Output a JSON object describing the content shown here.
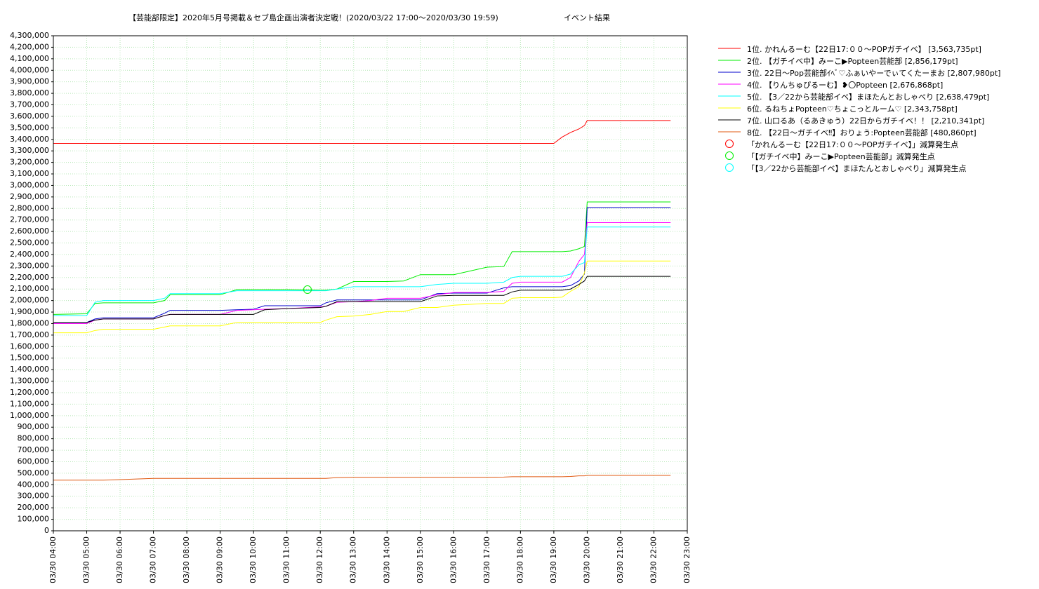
{
  "chart_data": {
    "type": "line",
    "title": "【芸能部限定】2020年5月号掲載＆セブ島企画出演者決定戦！(2020/03/22 17:00～2020/03/30 19:59)",
    "subtitle": "イベント結果",
    "x": [
      "03/30 04:00",
      "03/30 05:00",
      "03/30 05:15",
      "03/30 05:30",
      "03/30 06:00",
      "03/30 07:00",
      "03/30 07:20",
      "03/30 07:30",
      "03/30 08:00",
      "03/30 09:00",
      "03/30 09:30",
      "03/30 10:00",
      "03/30 10:20",
      "03/30 11:00",
      "03/30 12:00",
      "03/30 12:10",
      "03/30 12:30",
      "03/30 13:00",
      "03/30 13:30",
      "03/30 14:00",
      "03/30 14:30",
      "03/30 15:00",
      "03/30 15:30",
      "03/30 16:00",
      "03/30 17:00",
      "03/30 17:30",
      "03/30 17:45",
      "03/30 18:00",
      "03/30 19:00",
      "03/30 19:15",
      "03/30 19:30",
      "03/30 19:45",
      "03/30 19:55",
      "03/30 20:00",
      "03/30 21:00",
      "03/30 22:30"
    ],
    "series": [
      {
        "name": "1位. かれんるーむ【22日17:００～POPガチイベ】 [3,563,735pt]",
        "color": "#ff0000",
        "values": [
          3365000,
          3365000,
          3365000,
          3365000,
          3365000,
          3365000,
          3365000,
          3365000,
          3365000,
          3365000,
          3365000,
          3365000,
          3365000,
          3365000,
          3365000,
          3365000,
          3365000,
          3365000,
          3365000,
          3365000,
          3365000,
          3365000,
          3365000,
          3365000,
          3365000,
          3365000,
          3365000,
          3365000,
          3365000,
          3420000,
          3460000,
          3490000,
          3520000,
          3563735,
          3563735,
          3563735
        ]
      },
      {
        "name": "2位. 【ガチイベ中】みーこ▶Popteen芸能部 [2,856,179pt]",
        "color": "#00ee00",
        "values": [
          1880000,
          1885000,
          1975000,
          1980000,
          1980000,
          1980000,
          2000000,
          2050000,
          2050000,
          2050000,
          2095000,
          2095000,
          2095000,
          2095000,
          2090000,
          2090000,
          2100000,
          2165000,
          2165000,
          2165000,
          2170000,
          2225000,
          2225000,
          2225000,
          2290000,
          2295000,
          2425000,
          2425000,
          2425000,
          2425000,
          2430000,
          2450000,
          2470000,
          2856179,
          2856179,
          2856179
        ]
      },
      {
        "name": "3位. 22日～Pop芸能部ｲﾍﾞ♡ふぁいやーでぃてくたーまお [2,807,980pt]",
        "color": "#0000cc",
        "values": [
          1810000,
          1810000,
          1840000,
          1850000,
          1850000,
          1850000,
          1890000,
          1915000,
          1915000,
          1915000,
          1920000,
          1925000,
          1955000,
          1955000,
          1955000,
          1980000,
          2005000,
          2005000,
          2005000,
          2005000,
          2005000,
          2005000,
          2060000,
          2065000,
          2065000,
          2110000,
          2120000,
          2120000,
          2120000,
          2120000,
          2130000,
          2170000,
          2230000,
          2807980,
          2807980,
          2807980
        ]
      },
      {
        "name": "4位. 【りんちゅぴるーむ】❥〇Popteen [2,676,868pt]",
        "color": "#ff00ff",
        "values": [
          1800000,
          1800000,
          1830000,
          1840000,
          1840000,
          1840000,
          1870000,
          1880000,
          1880000,
          1880000,
          1915000,
          1920000,
          1925000,
          1930000,
          1945000,
          1950000,
          1985000,
          1990000,
          2000000,
          2020000,
          2020000,
          2020000,
          2050000,
          2070000,
          2070000,
          2080000,
          2150000,
          2160000,
          2160000,
          2160000,
          2200000,
          2340000,
          2400000,
          2676868,
          2676868,
          2676868
        ]
      },
      {
        "name": "5位. 【3／22から芸能部イベ】まほたんとおしゃべり [2,638,479pt]",
        "color": "#00ffff",
        "values": [
          1870000,
          1870000,
          1985000,
          2000000,
          2000000,
          2000000,
          2020000,
          2060000,
          2060000,
          2060000,
          2085000,
          2085000,
          2085000,
          2085000,
          2085000,
          2085000,
          2100000,
          2120000,
          2120000,
          2120000,
          2120000,
          2120000,
          2140000,
          2150000,
          2150000,
          2160000,
          2200000,
          2210000,
          2210000,
          2210000,
          2230000,
          2310000,
          2330000,
          2638479,
          2638479,
          2638479
        ]
      },
      {
        "name": "6位. るねちょPopteen♡ちょこっとルーム♡ [2,343,758pt]",
        "color": "#ffff00",
        "values": [
          1720000,
          1720000,
          1740000,
          1750000,
          1750000,
          1750000,
          1770000,
          1780000,
          1780000,
          1780000,
          1810000,
          1810000,
          1810000,
          1810000,
          1810000,
          1830000,
          1860000,
          1865000,
          1880000,
          1905000,
          1905000,
          1940000,
          1940000,
          1960000,
          1975000,
          1975000,
          2020000,
          2025000,
          2025000,
          2030000,
          2080000,
          2120000,
          2240000,
          2343758,
          2343758,
          2343758
        ]
      },
      {
        "name": "7位. 山口るあ（るあきゅう）22日からガチイベ！！ [2,210,341pt]",
        "color": "#000000",
        "values": [
          1810000,
          1810000,
          1830000,
          1840000,
          1840000,
          1840000,
          1870000,
          1880000,
          1880000,
          1880000,
          1880000,
          1880000,
          1920000,
          1930000,
          1940000,
          1950000,
          1990000,
          1990000,
          1990000,
          1990000,
          1990000,
          1990000,
          2040000,
          2045000,
          2045000,
          2045000,
          2075000,
          2090000,
          2090000,
          2090000,
          2100000,
          2140000,
          2170000,
          2210341,
          2210341,
          2210341
        ]
      },
      {
        "name": "8位. 【22日～ガチイベ‼】おりょう:Popteen芸能部 [480,860pt]",
        "color": "#e05a10",
        "values": [
          440000,
          440000,
          440000,
          440000,
          445000,
          455000,
          455000,
          455000,
          455000,
          455000,
          455000,
          455000,
          455000,
          455000,
          455000,
          455000,
          462000,
          465000,
          465000,
          465000,
          465000,
          465000,
          465000,
          465000,
          465000,
          467000,
          470000,
          470000,
          470000,
          470000,
          472000,
          477000,
          477000,
          480860,
          480860,
          480860
        ]
      }
    ],
    "markers": [
      {
        "name": "「かれんるーむ【22日17:００～POPガチイベ】」減算発生点",
        "color": "#ff0000",
        "x": [],
        "values": []
      },
      {
        "name": "「【ガチイベ中】みーこ▶Popteen芸能部」減算発生点",
        "color": "#00ee00",
        "x": [
          "03/30 11:37"
        ],
        "values": [
          2095000
        ]
      },
      {
        "name": "「【3／22から芸能部イベ】まほたんとおしゃべり」減算発生点",
        "color": "#00ffff",
        "x": [],
        "values": []
      }
    ],
    "xlim": [
      "03/30 04:00",
      "03/30 23:00"
    ],
    "xticks": [
      "03/30 04:00",
      "03/30 05:00",
      "03/30 06:00",
      "03/30 07:00",
      "03/30 08:00",
      "03/30 09:00",
      "03/30 10:00",
      "03/30 11:00",
      "03/30 12:00",
      "03/30 13:00",
      "03/30 14:00",
      "03/30 15:00",
      "03/30 16:00",
      "03/30 17:00",
      "03/30 18:00",
      "03/30 19:00",
      "03/30 20:00",
      "03/30 21:00",
      "03/30 22:00",
      "03/30 23:00"
    ],
    "ylim": [
      0,
      4300000
    ],
    "yticks": [
      0,
      {
        "value": 100000,
        "label": "100,000"
      },
      {
        "value": 200000,
        "label": "200,000"
      },
      {
        "value": 300000,
        "label": "300,000"
      },
      {
        "value": 400000,
        "label": "400,000"
      },
      {
        "value": 500000,
        "label": "500,000"
      },
      {
        "value": 600000,
        "label": "600,000"
      },
      {
        "value": 700000,
        "label": "700,000"
      },
      {
        "value": 800000,
        "label": "800,000"
      },
      {
        "value": 900000,
        "label": "900,000"
      },
      {
        "value": 1000000,
        "label": "1,000,000"
      },
      {
        "value": 1100000,
        "label": "1,100,000"
      },
      {
        "value": 1200000,
        "label": "1,200,000"
      },
      {
        "value": 1300000,
        "label": "1,300,000"
      },
      {
        "value": 1400000,
        "label": "1,400,000"
      },
      {
        "value": 1500000,
        "label": "1,500,000"
      },
      {
        "value": 1600000,
        "label": "1,600,000"
      },
      {
        "value": 1700000,
        "label": "1,700,000"
      },
      {
        "value": 1800000,
        "label": "1,800,000"
      },
      {
        "value": 1900000,
        "label": "1,900,000"
      },
      {
        "value": 2000000,
        "label": "2,000,000"
      },
      {
        "value": 2100000,
        "label": "2,100,000"
      },
      {
        "value": 2200000,
        "label": "2,200,000"
      },
      {
        "value": 2300000,
        "label": "2,300,000"
      },
      {
        "value": 2400000,
        "label": "2,400,000"
      },
      {
        "value": 2500000,
        "label": "2,500,000"
      },
      {
        "value": 2600000,
        "label": "2,600,000"
      },
      {
        "value": 2700000,
        "label": "2,700,000"
      },
      {
        "value": 2800000,
        "label": "2,800,000"
      },
      {
        "value": 2900000,
        "label": "2,900,000"
      },
      {
        "value": 3000000,
        "label": "3,000,000"
      },
      {
        "value": 3100000,
        "label": "3,100,000"
      },
      {
        "value": 3200000,
        "label": "3,200,000"
      },
      {
        "value": 3300000,
        "label": "3,300,000"
      },
      {
        "value": 3400000,
        "label": "3,400,000"
      },
      {
        "value": 3500000,
        "label": "3,500,000"
      },
      {
        "value": 3600000,
        "label": "3,600,000"
      },
      {
        "value": 3700000,
        "label": "3,700,000"
      },
      {
        "value": 3800000,
        "label": "3,800,000"
      },
      {
        "value": 3900000,
        "label": "3,900,000"
      },
      {
        "value": 4000000,
        "label": "4,000,000"
      },
      {
        "value": 4100000,
        "label": "4,100,000"
      },
      {
        "value": 4200000,
        "label": "4,200,000"
      },
      {
        "value": 4300000,
        "label": "4,300,000"
      }
    ],
    "grid": true,
    "legend": "right"
  }
}
